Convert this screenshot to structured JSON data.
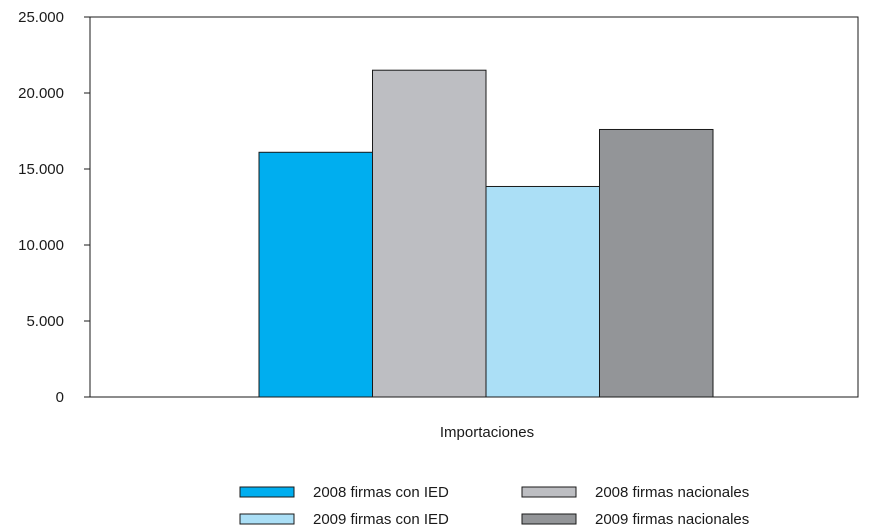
{
  "chart_data": {
    "type": "bar",
    "categories": [
      "Importaciones"
    ],
    "series": [
      {
        "name": "2008 firmas con IED",
        "values": [
          16100
        ],
        "color": "#00aeef"
      },
      {
        "name": "2008 firmas nacionales",
        "values": [
          21500
        ],
        "color": "#bdbec2"
      },
      {
        "name": "2009 firmas con IED",
        "values": [
          13850
        ],
        "color": "#abdff6"
      },
      {
        "name": "2009 firmas nacionales",
        "values": [
          17600
        ],
        "color": "#939598"
      }
    ],
    "y_ticks": [
      "0",
      "5.000",
      "10.000",
      "15.000",
      "20.000",
      "25.000"
    ],
    "y_tick_values": [
      0,
      5000,
      10000,
      15000,
      20000,
      25000
    ],
    "ylim": [
      0,
      25000
    ],
    "grid": false,
    "legend_position": "bottom",
    "legend_columns": 2
  }
}
